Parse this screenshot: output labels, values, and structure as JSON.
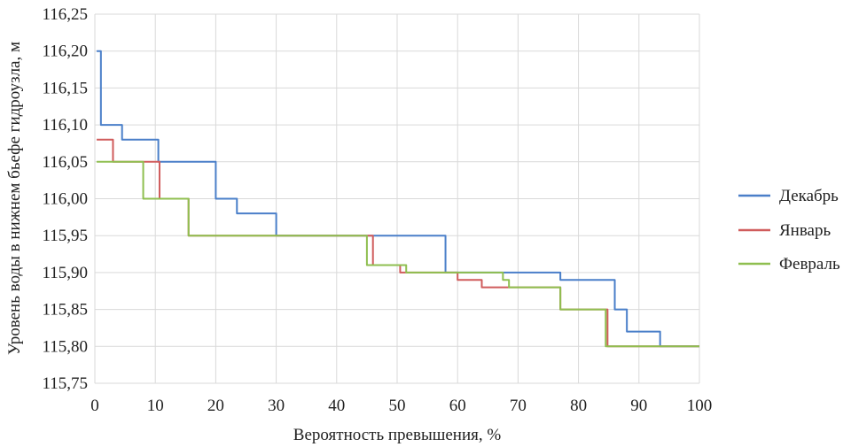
{
  "chart_data": {
    "type": "line",
    "title": "",
    "xlabel": "Вероятность превышения, %",
    "ylabel": "Уровень воды в нижнем бьефе гидроузла, м",
    "xlim": [
      0,
      100
    ],
    "ylim": [
      115.75,
      116.25
    ],
    "x_ticks": [
      "0",
      "10",
      "20",
      "30",
      "40",
      "50",
      "60",
      "70",
      "80",
      "90",
      "100"
    ],
    "y_ticks": [
      "115,75",
      "115,80",
      "115,85",
      "115,90",
      "115,95",
      "116,00",
      "116,05",
      "116,10",
      "116,15",
      "116,20",
      "116,25"
    ],
    "grid": true,
    "legend_position": "right",
    "series": [
      {
        "name": "Декабрь",
        "color": "#4a7fc9",
        "steps": [
          [
            0.3,
            116.2
          ],
          [
            1,
            116.1
          ],
          [
            4.5,
            116.08
          ],
          [
            10.5,
            116.05
          ],
          [
            20,
            116.0
          ],
          [
            23.5,
            115.98
          ],
          [
            30,
            115.95
          ],
          [
            58,
            115.9
          ],
          [
            77,
            115.89
          ],
          [
            86,
            115.85
          ],
          [
            88,
            115.82
          ],
          [
            93.5,
            115.8
          ],
          [
            100,
            115.8
          ]
        ]
      },
      {
        "name": "Январь",
        "color": "#d05c5c",
        "steps": [
          [
            0.3,
            116.08
          ],
          [
            3,
            116.05
          ],
          [
            10.7,
            116.0
          ],
          [
            15.5,
            115.95
          ],
          [
            46,
            115.91
          ],
          [
            50.5,
            115.9
          ],
          [
            60,
            115.89
          ],
          [
            64,
            115.88
          ],
          [
            68.5,
            115.88
          ],
          [
            77,
            115.85
          ],
          [
            84.8,
            115.8
          ],
          [
            100,
            115.8
          ]
        ]
      },
      {
        "name": "Февраль",
        "color": "#8fbf50",
        "steps": [
          [
            0.3,
            116.05
          ],
          [
            8,
            116.0
          ],
          [
            15.5,
            115.95
          ],
          [
            45,
            115.91
          ],
          [
            51.5,
            115.9
          ],
          [
            67.5,
            115.89
          ],
          [
            68.5,
            115.88
          ],
          [
            77,
            115.85
          ],
          [
            84.5,
            115.8
          ],
          [
            100,
            115.8
          ]
        ]
      }
    ]
  }
}
